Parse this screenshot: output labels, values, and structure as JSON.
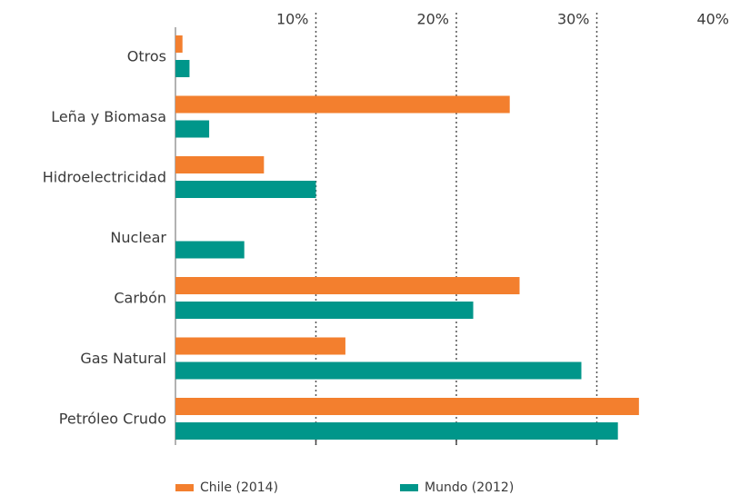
{
  "chart_data": {
    "type": "bar",
    "orientation": "horizontal",
    "categories": [
      "Otros",
      "Leña  y Biomasa",
      "Hidroelectricidad",
      "Nuclear",
      "Carbón",
      "Gas Natural",
      "Petróleo Crudo"
    ],
    "series": [
      {
        "name": "Chile (2014)",
        "color": "#f37f2e",
        "values": [
          0.5,
          23.8,
          6.3,
          null,
          24.5,
          12.1,
          33.0
        ]
      },
      {
        "name": "Mundo (2012)",
        "color": "#00968a",
        "values": [
          1.0,
          2.4,
          10.0,
          4.9,
          21.2,
          28.9,
          31.5
        ]
      }
    ],
    "xlim": [
      0,
      40
    ],
    "xticks": [
      {
        "value": 10,
        "label": "10%"
      },
      {
        "value": 20,
        "label": "20%"
      },
      {
        "value": 30,
        "label": "30%"
      },
      {
        "value": 40,
        "label": "40%"
      }
    ],
    "grid": true,
    "legend": "bottom"
  }
}
